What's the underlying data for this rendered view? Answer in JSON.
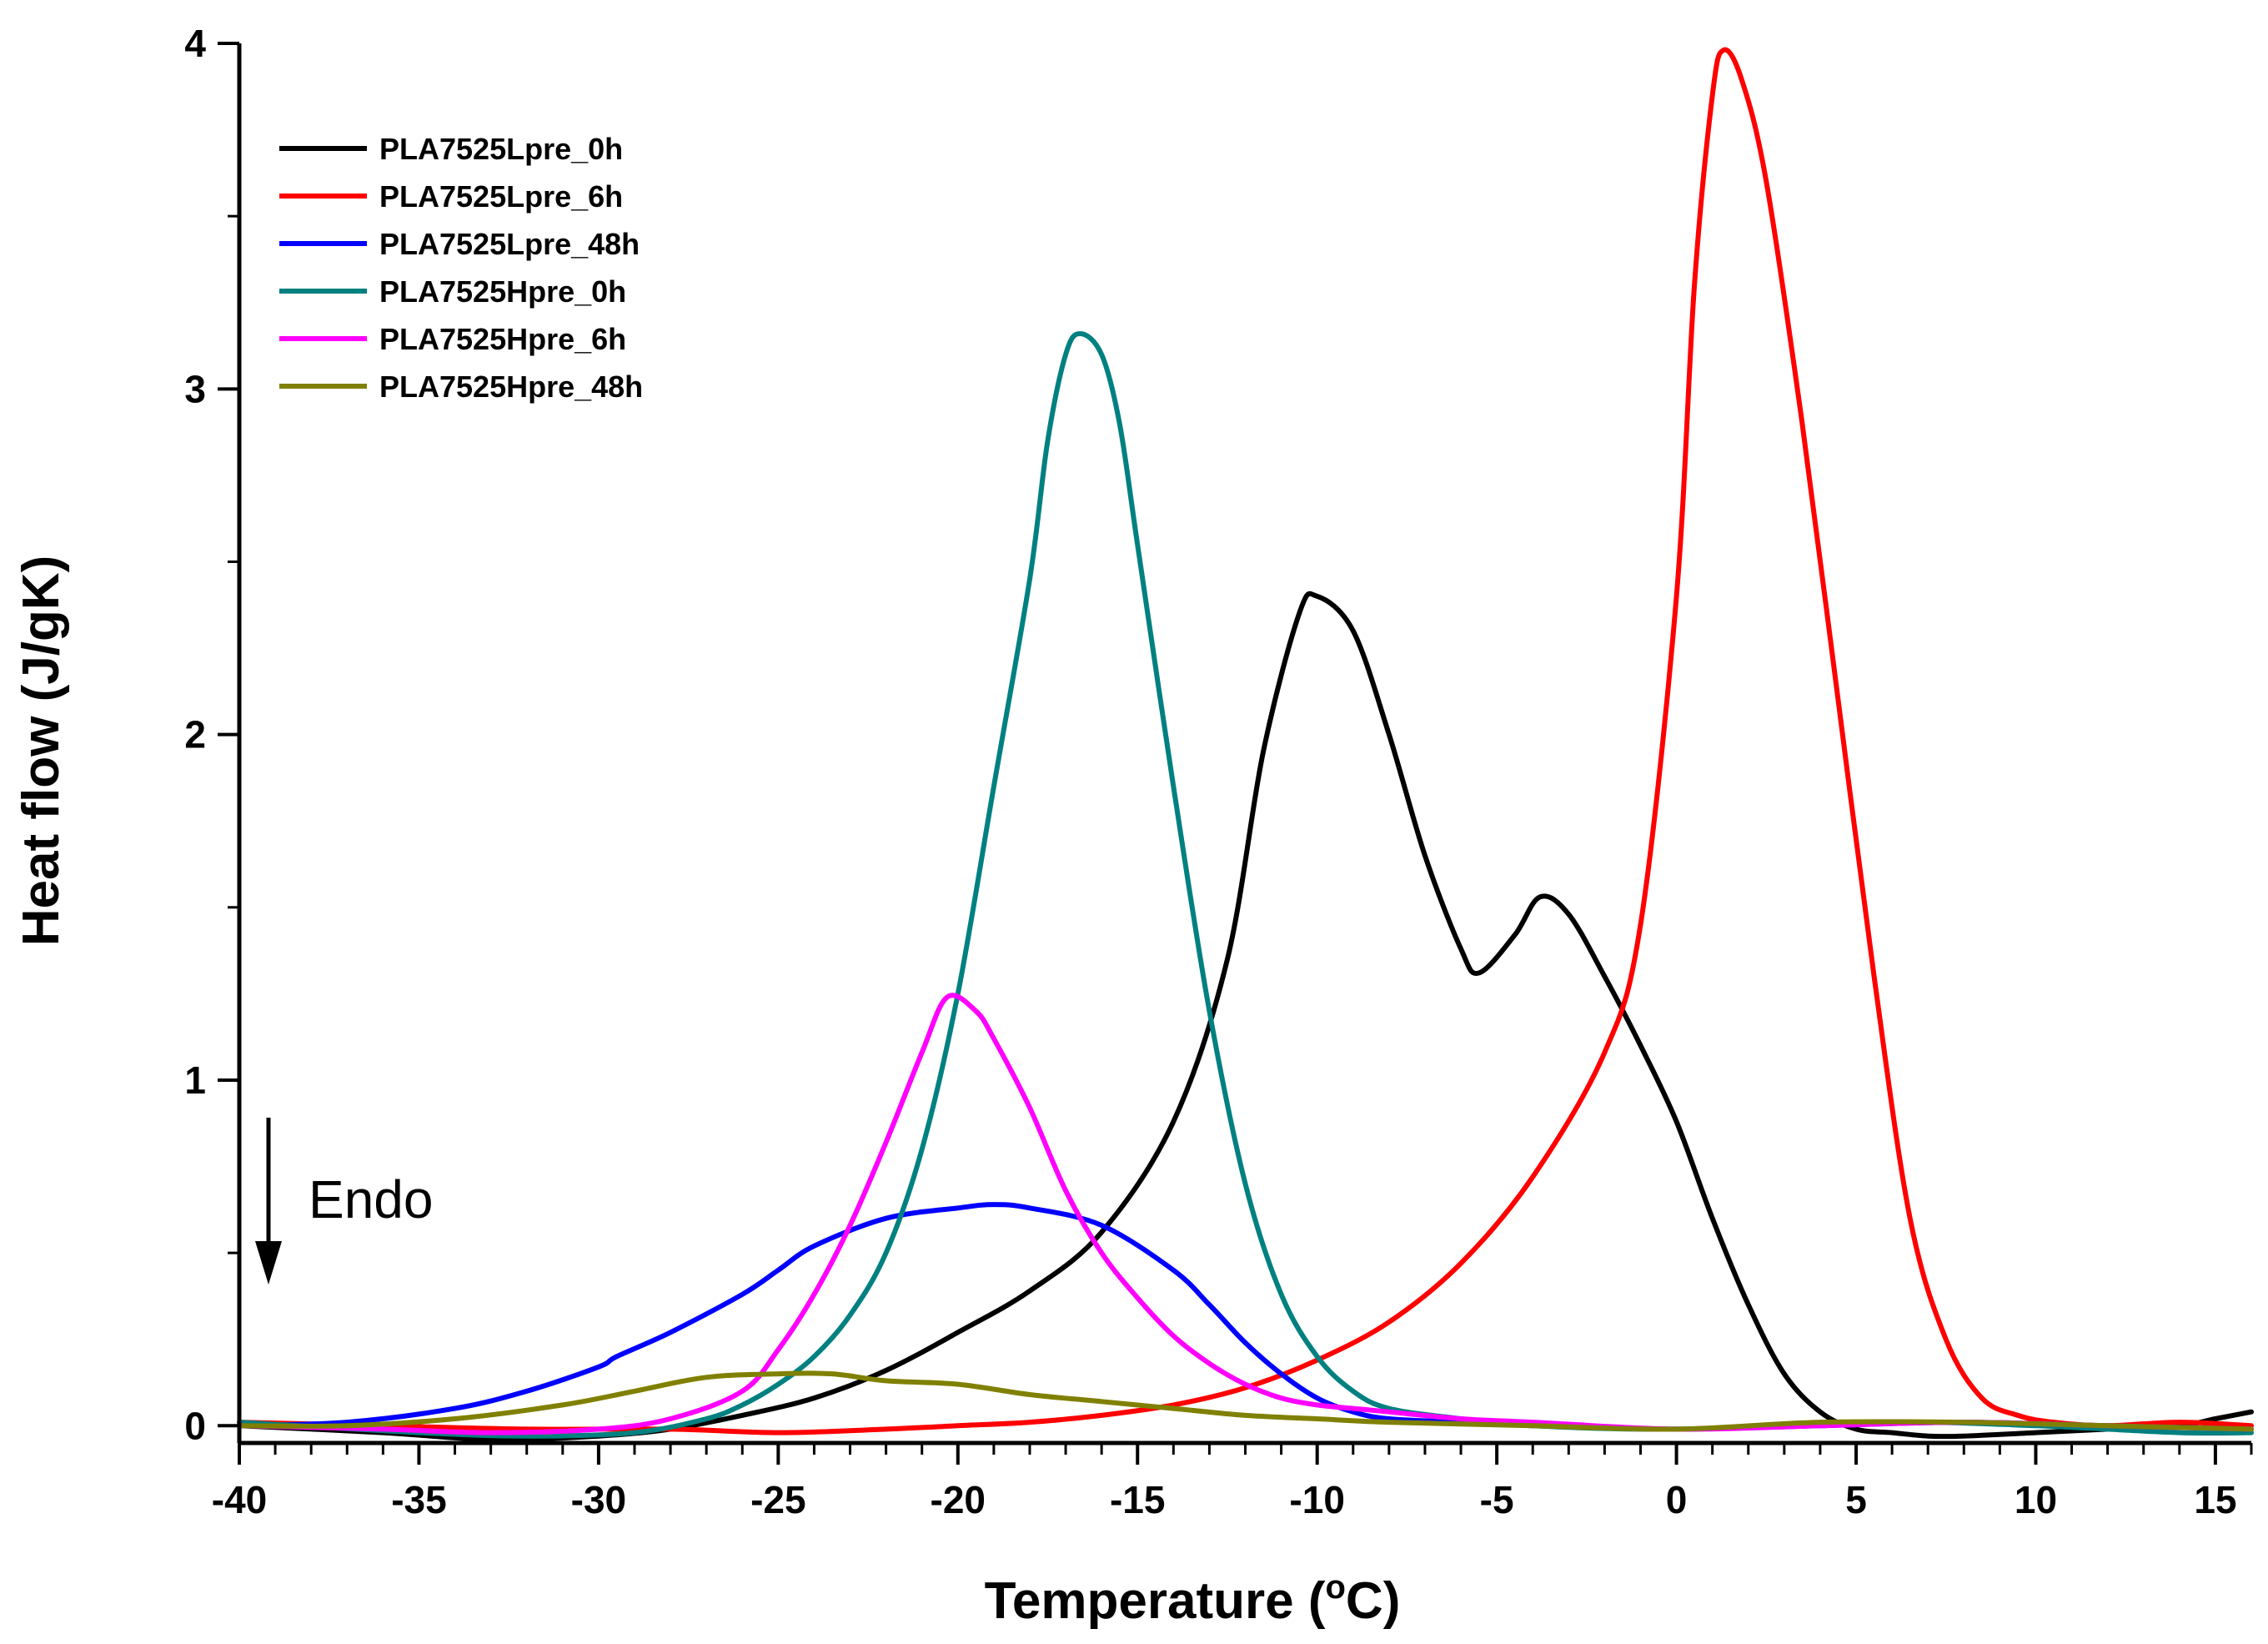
{
  "chart_data": {
    "type": "line",
    "xlabel": "Temperature (",
    "xlabel_sup": "o",
    "xlabel_suffix": "C)",
    "ylabel": "Heat flow (J/gK)",
    "xlim": [
      -40,
      16
    ],
    "ylim": [
      -0.05,
      4
    ],
    "x_ticks": [
      -40,
      -35,
      -30,
      -25,
      -20,
      -15,
      -10,
      -5,
      0,
      5,
      10,
      15
    ],
    "y_ticks": [
      0,
      1,
      2,
      3,
      4
    ],
    "legend_position": "top-left",
    "annotation": {
      "text": "Endo",
      "arrow": "down"
    },
    "series": [
      {
        "name": "PLA7525Lpre_0h",
        "color": "#000000",
        "points": [
          [
            -40,
            0
          ],
          [
            -36,
            -0.02
          ],
          [
            -33,
            -0.04
          ],
          [
            -30,
            -0.03
          ],
          [
            -28,
            -0.01
          ],
          [
            -26,
            0.03
          ],
          [
            -24,
            0.08
          ],
          [
            -22,
            0.16
          ],
          [
            -20,
            0.27
          ],
          [
            -18,
            0.39
          ],
          [
            -16,
            0.56
          ],
          [
            -14,
            0.88
          ],
          [
            -12.5,
            1.35
          ],
          [
            -11.5,
            1.95
          ],
          [
            -10.5,
            2.35
          ],
          [
            -10,
            2.4
          ],
          [
            -9,
            2.3
          ],
          [
            -8,
            2.0
          ],
          [
            -7,
            1.65
          ],
          [
            -6,
            1.38
          ],
          [
            -5.5,
            1.31
          ],
          [
            -4.5,
            1.42
          ],
          [
            -3.8,
            1.53
          ],
          [
            -3,
            1.48
          ],
          [
            -2,
            1.3
          ],
          [
            -1,
            1.1
          ],
          [
            0,
            0.88
          ],
          [
            1,
            0.6
          ],
          [
            2,
            0.35
          ],
          [
            3,
            0.15
          ],
          [
            4,
            0.04
          ],
          [
            5,
            -0.01
          ],
          [
            6,
            -0.02
          ],
          [
            7,
            -0.03
          ],
          [
            8,
            -0.03
          ],
          [
            10,
            -0.02
          ],
          [
            12,
            -0.01
          ],
          [
            14,
            0.0
          ],
          [
            15,
            0.02
          ],
          [
            16,
            0.04
          ]
        ]
      },
      {
        "name": "PLA7525Lpre_6h",
        "color": "#ff0000",
        "points": [
          [
            -40,
            0.01
          ],
          [
            -36,
            0.0
          ],
          [
            -32,
            -0.01
          ],
          [
            -28,
            -0.01
          ],
          [
            -25,
            -0.02
          ],
          [
            -22,
            -0.01
          ],
          [
            -20,
            0.0
          ],
          [
            -18,
            0.01
          ],
          [
            -16,
            0.03
          ],
          [
            -14,
            0.06
          ],
          [
            -12,
            0.11
          ],
          [
            -10,
            0.19
          ],
          [
            -8,
            0.3
          ],
          [
            -6,
            0.47
          ],
          [
            -4,
            0.72
          ],
          [
            -2,
            1.08
          ],
          [
            -1,
            1.45
          ],
          [
            0,
            2.4
          ],
          [
            0.5,
            3.3
          ],
          [
            1,
            3.85
          ],
          [
            1.3,
            3.98
          ],
          [
            1.8,
            3.9
          ],
          [
            2.5,
            3.6
          ],
          [
            3.5,
            2.9
          ],
          [
            4.5,
            2.1
          ],
          [
            5.5,
            1.3
          ],
          [
            6.5,
            0.6
          ],
          [
            7.5,
            0.25
          ],
          [
            8.5,
            0.08
          ],
          [
            9.5,
            0.03
          ],
          [
            10.5,
            0.01
          ],
          [
            12,
            0.0
          ],
          [
            14,
            0.01
          ],
          [
            16,
            0.0
          ]
        ]
      },
      {
        "name": "PLA7525Lpre_48h",
        "color": "#0000ff",
        "points": [
          [
            -40,
            0.0
          ],
          [
            -37,
            0.01
          ],
          [
            -34,
            0.05
          ],
          [
            -32,
            0.1
          ],
          [
            -30,
            0.17
          ],
          [
            -29.5,
            0.2
          ],
          [
            -28,
            0.27
          ],
          [
            -26,
            0.38
          ],
          [
            -25,
            0.45
          ],
          [
            -24,
            0.52
          ],
          [
            -22,
            0.6
          ],
          [
            -20,
            0.63
          ],
          [
            -19,
            0.64
          ],
          [
            -18,
            0.63
          ],
          [
            -16,
            0.58
          ],
          [
            -14,
            0.45
          ],
          [
            -13,
            0.35
          ],
          [
            -12,
            0.24
          ],
          [
            -11,
            0.15
          ],
          [
            -10,
            0.08
          ],
          [
            -9,
            0.04
          ],
          [
            -8,
            0.02
          ],
          [
            -6,
            0.01
          ],
          [
            -4,
            0.0
          ],
          [
            0,
            -0.01
          ],
          [
            4,
            0.0
          ],
          [
            8,
            0.01
          ],
          [
            12,
            0.0
          ],
          [
            16,
            -0.01
          ]
        ]
      },
      {
        "name": "PLA7525Hpre_0h",
        "color": "#008080",
        "points": [
          [
            -40,
            0.01
          ],
          [
            -35,
            -0.02
          ],
          [
            -32,
            -0.03
          ],
          [
            -29,
            -0.02
          ],
          [
            -27,
            0.02
          ],
          [
            -26,
            0.06
          ],
          [
            -25,
            0.12
          ],
          [
            -24,
            0.2
          ],
          [
            -23,
            0.32
          ],
          [
            -22,
            0.5
          ],
          [
            -21,
            0.8
          ],
          [
            -20,
            1.25
          ],
          [
            -19,
            1.85
          ],
          [
            -18,
            2.45
          ],
          [
            -17.5,
            2.85
          ],
          [
            -17,
            3.1
          ],
          [
            -16.6,
            3.16
          ],
          [
            -16,
            3.1
          ],
          [
            -15.5,
            2.9
          ],
          [
            -15,
            2.55
          ],
          [
            -14,
            1.85
          ],
          [
            -13,
            1.2
          ],
          [
            -12,
            0.7
          ],
          [
            -11,
            0.38
          ],
          [
            -10,
            0.2
          ],
          [
            -9,
            0.1
          ],
          [
            -8,
            0.05
          ],
          [
            -6,
            0.02
          ],
          [
            -4,
            0.0
          ],
          [
            0,
            -0.01
          ],
          [
            6,
            0.01
          ],
          [
            10,
            0.0
          ],
          [
            14,
            -0.02
          ],
          [
            16,
            -0.02
          ]
        ]
      },
      {
        "name": "PLA7525Hpre_6h",
        "color": "#ff00ff",
        "points": [
          [
            -40,
            0.0
          ],
          [
            -36,
            -0.01
          ],
          [
            -33,
            -0.02
          ],
          [
            -30,
            -0.01
          ],
          [
            -28,
            0.02
          ],
          [
            -26,
            0.1
          ],
          [
            -25,
            0.22
          ],
          [
            -24,
            0.38
          ],
          [
            -23,
            0.58
          ],
          [
            -22,
            0.82
          ],
          [
            -21,
            1.08
          ],
          [
            -20.3,
            1.24
          ],
          [
            -19.5,
            1.2
          ],
          [
            -19,
            1.12
          ],
          [
            -18,
            0.92
          ],
          [
            -17,
            0.68
          ],
          [
            -16,
            0.5
          ],
          [
            -15,
            0.37
          ],
          [
            -14,
            0.26
          ],
          [
            -13,
            0.18
          ],
          [
            -12,
            0.12
          ],
          [
            -11,
            0.08
          ],
          [
            -10,
            0.06
          ],
          [
            -9,
            0.05
          ],
          [
            -8,
            0.04
          ],
          [
            -6,
            0.02
          ],
          [
            -4,
            0.01
          ],
          [
            0,
            -0.01
          ],
          [
            4,
            0.0
          ],
          [
            8,
            0.01
          ],
          [
            12,
            0.0
          ],
          [
            16,
            -0.01
          ]
        ]
      },
      {
        "name": "PLA7525Hpre_48h",
        "color": "#808000",
        "points": [
          [
            -40,
            0.0
          ],
          [
            -37,
            0.0
          ],
          [
            -34,
            0.02
          ],
          [
            -31,
            0.06
          ],
          [
            -29,
            0.1
          ],
          [
            -27,
            0.14
          ],
          [
            -25,
            0.15
          ],
          [
            -23.5,
            0.15
          ],
          [
            -22,
            0.13
          ],
          [
            -20,
            0.12
          ],
          [
            -18,
            0.09
          ],
          [
            -16,
            0.07
          ],
          [
            -14,
            0.05
          ],
          [
            -12,
            0.03
          ],
          [
            -10,
            0.02
          ],
          [
            -8,
            0.01
          ],
          [
            -4,
            0.0
          ],
          [
            0,
            -0.01
          ],
          [
            4,
            0.01
          ],
          [
            8,
            0.01
          ],
          [
            12,
            0.0
          ],
          [
            16,
            -0.01
          ]
        ]
      }
    ]
  }
}
